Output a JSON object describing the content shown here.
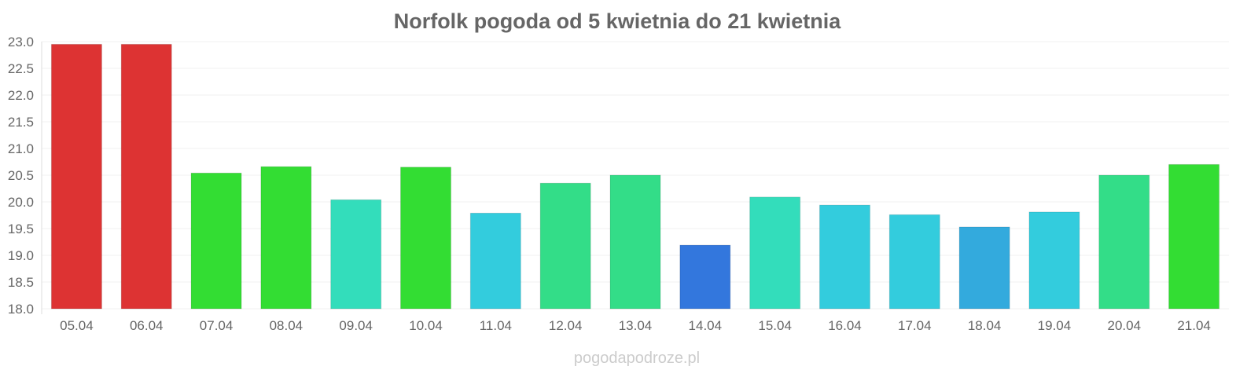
{
  "chart_data": {
    "type": "bar",
    "title": "Norfolk pogoda od 5 kwietnia do 21 kwietnia",
    "xlabel": "",
    "ylabel": "",
    "ylim": [
      18.0,
      23.0
    ],
    "yticks": [
      "18.0",
      "18.5",
      "19.0",
      "19.5",
      "20.0",
      "20.5",
      "21.0",
      "21.5",
      "22.0",
      "22.5",
      "23.0"
    ],
    "grid": true,
    "categories": [
      "05.04",
      "06.04",
      "07.04",
      "08.04",
      "09.04",
      "10.04",
      "11.04",
      "12.04",
      "13.04",
      "14.04",
      "15.04",
      "16.04",
      "17.04",
      "18.04",
      "19.04",
      "20.04",
      "21.04"
    ],
    "values": [
      22.95,
      22.95,
      20.54,
      20.66,
      20.04,
      20.65,
      19.79,
      20.35,
      20.5,
      19.19,
      20.09,
      19.94,
      19.76,
      19.53,
      19.81,
      20.5,
      20.7
    ],
    "colors": [
      "#dd3333",
      "#dd3333",
      "#33dd33",
      "#33dd33",
      "#33ddbb",
      "#33dd33",
      "#33ccdd",
      "#33dd88",
      "#33dd88",
      "#3377dd",
      "#33ddbb",
      "#33ccdd",
      "#33ccdd",
      "#33aadd",
      "#33ccdd",
      "#33dd88",
      "#33dd33"
    ]
  },
  "watermark": "pogodapodroze.pl"
}
